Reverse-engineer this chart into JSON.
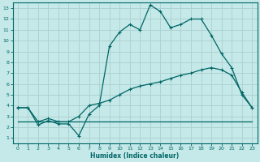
{
  "xlabel": "Humidex (Indice chaleur)",
  "bg_color": "#c5e8e8",
  "line_color": "#006666",
  "grid_color": "#aad0d0",
  "xlim": [
    -0.5,
    23.5
  ],
  "ylim": [
    0.5,
    13.5
  ],
  "xticks": [
    0,
    1,
    2,
    3,
    4,
    5,
    6,
    7,
    8,
    9,
    10,
    11,
    12,
    13,
    14,
    15,
    16,
    17,
    18,
    19,
    20,
    21,
    22,
    23
  ],
  "yticks": [
    1,
    2,
    3,
    4,
    5,
    6,
    7,
    8,
    9,
    10,
    11,
    12,
    13
  ],
  "series1_x": [
    0,
    1,
    2,
    3,
    4,
    5,
    6,
    7,
    8,
    9,
    10,
    11,
    12,
    13,
    14,
    15,
    16,
    17,
    18,
    19,
    20,
    21,
    22,
    23
  ],
  "series1_y": [
    3.8,
    3.8,
    2.2,
    2.6,
    2.3,
    2.3,
    1.2,
    3.2,
    4.0,
    9.5,
    10.8,
    11.5,
    11.0,
    13.3,
    12.7,
    11.2,
    11.5,
    12.0,
    12.0,
    10.5,
    8.8,
    7.5,
    5.0,
    3.8
  ],
  "series2_x": [
    0,
    1,
    2,
    3,
    4,
    5,
    6,
    7,
    8,
    9,
    10,
    11,
    12,
    13,
    14,
    15,
    16,
    17,
    18,
    19,
    20,
    21,
    22,
    23
  ],
  "series2_y": [
    3.8,
    3.8,
    2.5,
    2.8,
    2.5,
    2.5,
    3.0,
    4.0,
    4.2,
    4.5,
    5.0,
    5.5,
    5.8,
    6.0,
    6.2,
    6.5,
    6.8,
    7.0,
    7.3,
    7.5,
    7.3,
    6.8,
    5.2,
    3.8
  ],
  "series3_x": [
    0,
    7,
    23
  ],
  "series3_y": [
    2.5,
    2.5,
    2.5
  ]
}
